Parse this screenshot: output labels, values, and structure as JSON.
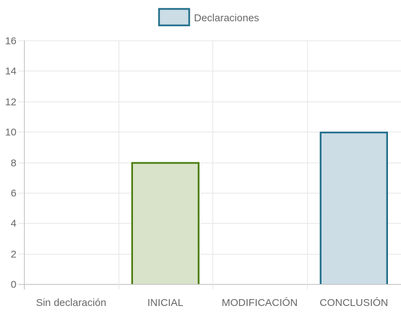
{
  "chart_data": {
    "type": "bar",
    "categories": [
      "Sin declaración",
      "INICIAL",
      "MODIFICACIÓN",
      "CONCLUSIÓN"
    ],
    "series": [
      {
        "name": "Declaraciones",
        "values": [
          0,
          8,
          0,
          10
        ]
      }
    ],
    "bar_colors": {
      "fill": [
        "#ccdde6",
        "#d9e3c9",
        "#ccdde6",
        "#ccdde6"
      ],
      "stroke": [
        "#216e8a",
        "#4b7d12",
        "#216e8a",
        "#216e8a"
      ]
    },
    "legend": {
      "position": "top",
      "fill": "#ccdde6",
      "stroke": "#216e8a"
    },
    "ylim": [
      0,
      16
    ],
    "yticks": [
      0,
      2,
      4,
      6,
      8,
      10,
      12,
      14,
      16
    ],
    "grid": true,
    "grid_color": "#e6e6e6"
  }
}
